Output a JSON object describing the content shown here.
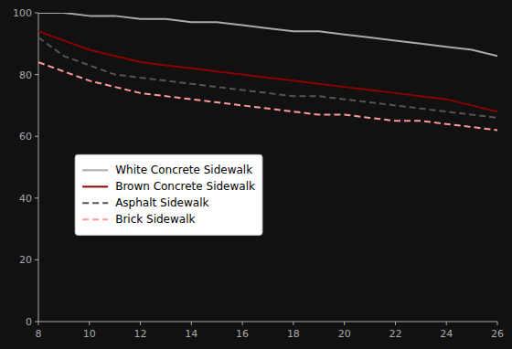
{
  "chart_data": {
    "type": "line",
    "x": [
      8,
      9,
      10,
      11,
      12,
      13,
      14,
      15,
      16,
      17,
      18,
      19,
      20,
      21,
      22,
      23,
      24,
      25,
      26
    ],
    "series": [
      {
        "name": "White Concrete Sidewalk",
        "color": "#aaaaaa",
        "line_style": "solid",
        "values": [
          100,
          100,
          99,
          99,
          98,
          98,
          97,
          97,
          96,
          95,
          94,
          94,
          93,
          92,
          91,
          90,
          89,
          88,
          86
        ]
      },
      {
        "name": "Brown Concrete Sidewalk",
        "color": "#8b0000",
        "line_style": "solid",
        "values": [
          94,
          91,
          88,
          86,
          84,
          83,
          82,
          81,
          80,
          79,
          78,
          77,
          76,
          75,
          74,
          73,
          72,
          70,
          68
        ]
      },
      {
        "name": "Asphalt Sidewalk",
        "color": "#555555",
        "line_style": "dashed",
        "values": [
          92,
          86,
          83,
          80,
          79,
          78,
          77,
          76,
          75,
          74,
          73,
          73,
          72,
          71,
          70,
          69,
          68,
          67,
          66
        ]
      },
      {
        "name": "Brick Sidewalk",
        "color": "#ff9999",
        "line_style": "dashed",
        "values": [
          84,
          81,
          78,
          76,
          74,
          73,
          72,
          71,
          70,
          69,
          68,
          67,
          67,
          66,
          65,
          65,
          64,
          63,
          62
        ]
      }
    ],
    "xlim": [
      8,
      26
    ],
    "xticks": [
      8,
      10,
      12,
      14,
      16,
      18,
      20,
      22,
      24,
      26
    ],
    "ylim": [
      0,
      100
    ],
    "yticks": [
      0,
      20,
      40,
      60,
      80,
      100
    ],
    "grid": false,
    "legend": "lower left"
  }
}
